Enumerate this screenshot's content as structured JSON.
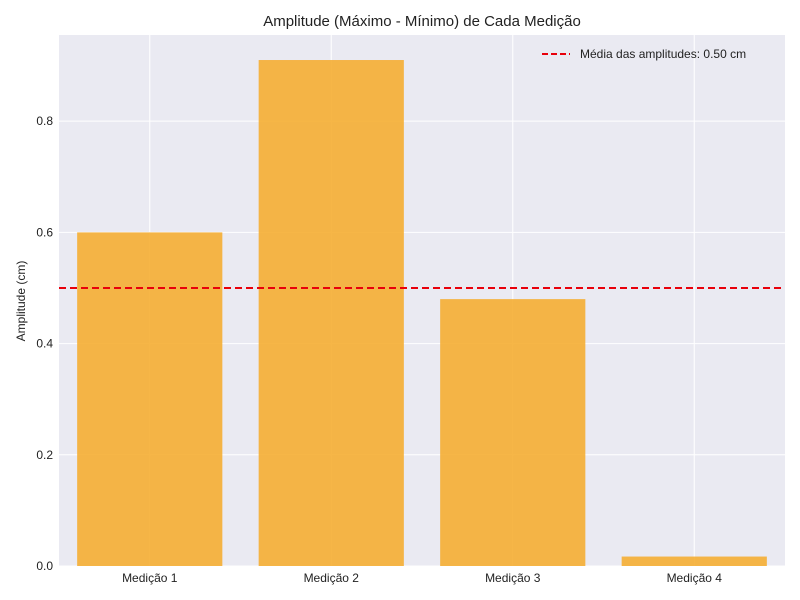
{
  "chart_data": {
    "type": "bar",
    "title": "Amplitude (Máximo - Mínimo) de Cada Medição",
    "xlabel": "",
    "ylabel": "Amplitude (cm)",
    "categories": [
      "Medição 1",
      "Medição 2",
      "Medição 3",
      "Medição 4"
    ],
    "values": [
      0.6,
      0.91,
      0.48,
      0.017
    ],
    "ylim": [
      0,
      0.955
    ],
    "yticks": [
      0.0,
      0.2,
      0.4,
      0.6,
      0.8
    ],
    "ytick_labels": [
      "0.0",
      "0.2",
      "0.4",
      "0.6",
      "0.8"
    ],
    "bar_color": "#f5ae33",
    "background_color": "#eaeaf2",
    "grid": true,
    "mean_line": {
      "value": 0.5,
      "color": "#e8000b",
      "style": "dashed",
      "label": "Média das amplitudes: 0.50 cm"
    },
    "legend_position": "top-right"
  }
}
